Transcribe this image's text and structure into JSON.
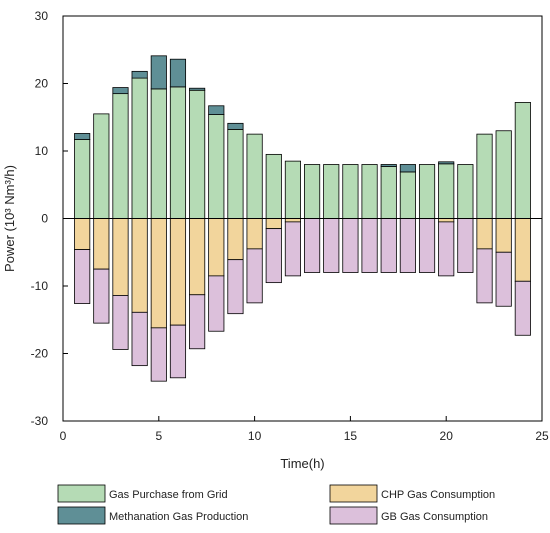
{
  "chart_data": {
    "type": "bar",
    "stacked": true,
    "xlabel": "Time(h)",
    "ylabel": "Power (10³ Nm³/h)",
    "xlim": [
      0,
      25
    ],
    "ylim": [
      -30,
      30
    ],
    "xticks": [
      0,
      5,
      10,
      15,
      20,
      25
    ],
    "yticks": [
      -30,
      -20,
      -10,
      0,
      10,
      20,
      30
    ],
    "grid": false,
    "legend_position": "bottom",
    "x": [
      1,
      2,
      3,
      4,
      5,
      6,
      7,
      8,
      9,
      10,
      11,
      12,
      13,
      14,
      15,
      16,
      17,
      18,
      19,
      20,
      21,
      22,
      23,
      24
    ],
    "series": [
      {
        "name": "Gas Purchase from Grid",
        "color": "#b5dbb5",
        "values": [
          11.7,
          15.5,
          18.5,
          20.8,
          19.2,
          19.5,
          19.0,
          15.4,
          13.2,
          12.5,
          9.5,
          8.5,
          8.0,
          8.0,
          8.0,
          8.0,
          7.7,
          6.9,
          8.0,
          8.1,
          8.0,
          12.5,
          13.0,
          17.2
        ]
      },
      {
        "name": "Methanation Gas Production",
        "color": "#5f8f96",
        "values": [
          0.9,
          0,
          0.9,
          1.0,
          4.9,
          4.1,
          0.3,
          1.3,
          0.9,
          0,
          0,
          0,
          0,
          0,
          0,
          0,
          0.3,
          1.1,
          0,
          0.3,
          0,
          0,
          0,
          0
        ]
      },
      {
        "name": "CHP Gas Consumption",
        "color": "#f2d59c",
        "values": [
          -4.6,
          -7.5,
          -11.4,
          -13.9,
          -16.2,
          -15.8,
          -11.3,
          -8.5,
          -6.1,
          -4.5,
          -1.5,
          -0.5,
          0,
          0,
          0,
          0,
          0,
          0,
          0,
          -0.5,
          0,
          -4.5,
          -5.0,
          -9.3
        ]
      },
      {
        "name": "GB Gas Consumption",
        "color": "#dcc0db",
        "values": [
          -8.0,
          -8.0,
          -8.0,
          -7.9,
          -7.9,
          -7.8,
          -8.0,
          -8.2,
          -8.0,
          -8.0,
          -8.0,
          -8.0,
          -8.0,
          -8.0,
          -8.0,
          -8.0,
          -8.0,
          -8.0,
          -8.0,
          -8.0,
          -8.0,
          -8.0,
          -8.0,
          -8.0
        ]
      }
    ],
    "legend": {
      "items": [
        {
          "label": "Gas Purchase from Grid",
          "color": "#b5dbb5"
        },
        {
          "label": "CHP Gas Consumption",
          "color": "#f2d59c"
        },
        {
          "label": "Methanation Gas Production",
          "color": "#5f8f96"
        },
        {
          "label": "GB Gas Consumption",
          "color": "#dcc0db"
        }
      ]
    }
  }
}
